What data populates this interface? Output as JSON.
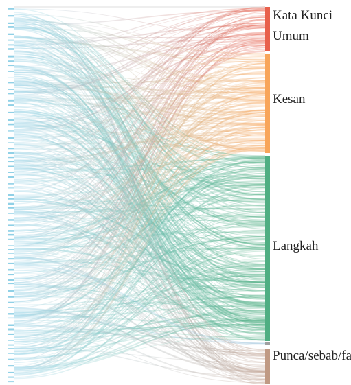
{
  "nodes": [
    {
      "label": "Kata Kunci Umum"
    },
    {
      "label": "Kesan"
    },
    {
      "label": "Langkah"
    },
    {
      "label": "Punca/sebab/faktor"
    }
  ]
}
